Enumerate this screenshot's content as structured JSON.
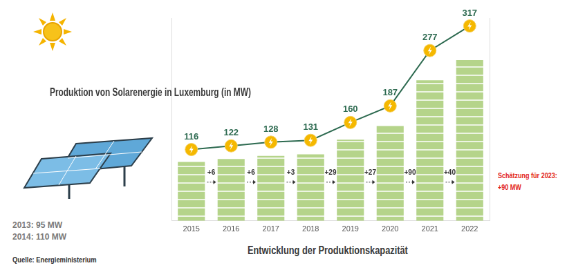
{
  "chart_data": {
    "type": "bar",
    "title": "Produktion von Solarenergie in Luxemburg (in MW)",
    "subtitle": "Entwicklung der Produktionskapazität",
    "categories": [
      "2015",
      "2016",
      "2017",
      "2018",
      "2019",
      "2020",
      "2021",
      "2022"
    ],
    "series": [
      {
        "type": "bar",
        "color": "#b5d48a",
        "values": [
          116,
          122,
          128,
          131,
          160,
          187,
          277,
          317
        ]
      },
      {
        "type": "line",
        "axis": "y2",
        "color": "#2d6a50",
        "marker": "circle",
        "data_labels": true,
        "values": [
          116,
          122,
          128,
          131,
          160,
          187,
          277,
          317
        ]
      }
    ],
    "ylim": [
      0,
      400
    ],
    "y2lim": [
      0,
      330
    ],
    "tick_labels": "x",
    "grid": false,
    "increments": {
      "values": [
        6,
        6,
        3,
        29,
        27,
        90,
        40
      ],
      "value_labels": [
        "+6",
        "+6",
        "+3",
        "+29",
        "+27",
        "+90",
        "+40"
      ]
    },
    "annotations": [
      "Schätzung für 2023:",
      "+90 MW"
    ],
    "notes": [
      "2013: 95 MW",
      "2014: 110 MW"
    ],
    "source": "Quelle: Energieministerium"
  }
}
